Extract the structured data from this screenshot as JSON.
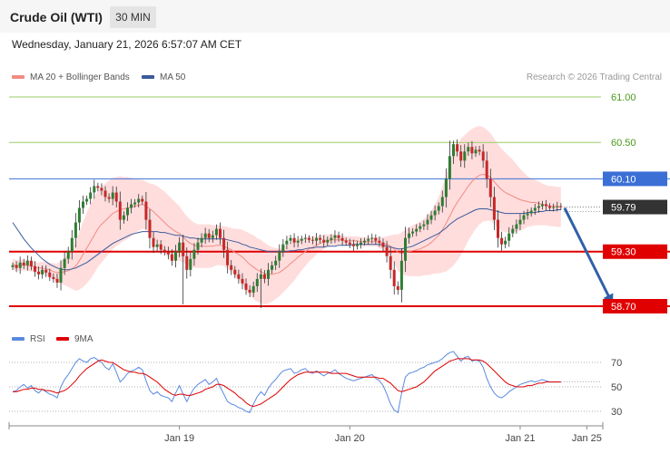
{
  "header": {
    "title": "Crude Oil (WTI)",
    "timeframe": "30 MIN"
  },
  "datetime": "Wednesday, January 21, 2026 6:57:07 AM CET",
  "legend": {
    "bb_label": "MA 20 + Bollinger Bands",
    "ma50_label": "MA 50",
    "copyright": "Research © 2026 Trading Central"
  },
  "rsi_legend": {
    "rsi_label": "RSI",
    "ma_label": "9MA"
  },
  "colors": {
    "up": "#2e7d32",
    "down": "#c62828",
    "bb": "#ffb3b3",
    "ma50": "#3a5a9c",
    "support": "#e00000",
    "pivot": "#3b6fd6",
    "target_lines": "#9acd66",
    "rsi": "#5a8ae0",
    "rsi_ma": "#e00000",
    "arrow": "#3060a8"
  },
  "chart_data": [
    {
      "type": "candlestick",
      "price_range": [
        58.62,
        61.1
      ],
      "x_axis_labels": [
        {
          "label": "Jan 19",
          "bar": 45
        },
        {
          "label": "Jan 20",
          "bar": 91
        },
        {
          "label": "Jan 21",
          "bar": 137
        },
        {
          "label": "Jan 25",
          "bar": 155
        }
      ],
      "levels": [
        {
          "value": 61.0,
          "label": "61.00",
          "kind": "target"
        },
        {
          "value": 60.5,
          "label": "60.50",
          "kind": "target"
        },
        {
          "value": 60.1,
          "label": "60.10",
          "kind": "pivot"
        },
        {
          "value": 59.79,
          "label": "59.79",
          "kind": "last"
        },
        {
          "value": 59.3,
          "label": "59.30",
          "kind": "support"
        },
        {
          "value": 58.7,
          "label": "58.70",
          "kind": "support"
        }
      ],
      "projection": {
        "from_bar": 149,
        "from_price": 59.78,
        "to_bar": 162,
        "to_price": 58.72
      },
      "closes": [
        59.15,
        59.12,
        59.18,
        59.15,
        59.2,
        59.14,
        59.08,
        59.05,
        59.1,
        59.07,
        59.02,
        59.0,
        58.96,
        59.12,
        59.22,
        59.3,
        59.45,
        59.62,
        59.78,
        59.85,
        59.88,
        59.95,
        60.02,
        60.0,
        59.97,
        59.9,
        59.88,
        59.95,
        59.85,
        59.65,
        59.7,
        59.78,
        59.82,
        59.84,
        59.88,
        59.85,
        59.65,
        59.45,
        59.35,
        59.38,
        59.32,
        59.3,
        59.27,
        59.2,
        59.3,
        59.4,
        59.25,
        59.1,
        59.22,
        59.32,
        59.4,
        59.45,
        59.5,
        59.45,
        59.48,
        59.55,
        59.45,
        59.32,
        59.15,
        59.1,
        59.05,
        59.0,
        58.95,
        58.88,
        58.85,
        58.92,
        59.0,
        59.05,
        59.0,
        59.1,
        59.15,
        59.2,
        59.3,
        59.38,
        59.42,
        59.45,
        59.4,
        59.42,
        59.44,
        59.45,
        59.43,
        59.42,
        59.45,
        59.43,
        59.4,
        59.43,
        59.45,
        59.48,
        59.45,
        59.42,
        59.4,
        59.38,
        59.36,
        59.38,
        59.4,
        59.42,
        59.44,
        59.45,
        59.42,
        59.4,
        59.35,
        59.25,
        59.1,
        58.92,
        58.88,
        59.2,
        59.45,
        59.5,
        59.52,
        59.55,
        59.58,
        59.6,
        59.65,
        59.7,
        59.75,
        59.8,
        59.9,
        60.1,
        60.35,
        60.48,
        60.4,
        60.3,
        60.4,
        60.45,
        60.38,
        60.42,
        60.4,
        60.3,
        60.1,
        59.9,
        59.65,
        59.45,
        59.38,
        59.42,
        59.5,
        59.55,
        59.6,
        59.65,
        59.7,
        59.72,
        59.75,
        59.78,
        59.8,
        59.82,
        59.8,
        59.78,
        59.79,
        59.8,
        59.79
      ],
      "ma20": [
        59.16,
        59.15,
        59.15,
        59.15,
        59.15,
        59.14,
        59.13,
        59.12,
        59.12,
        59.11,
        59.1,
        59.08,
        59.07,
        59.07,
        59.08,
        59.09,
        59.11,
        59.14,
        59.2,
        59.27,
        59.34,
        59.41,
        59.48,
        59.55,
        59.6,
        59.64,
        59.68,
        59.72,
        59.74,
        59.76,
        59.77,
        59.78,
        59.79,
        59.8,
        59.81,
        59.82,
        59.8,
        59.77,
        59.74,
        59.7,
        59.66,
        59.62,
        59.58,
        59.55,
        59.52,
        59.5,
        59.46,
        59.42,
        59.39,
        59.37,
        59.36,
        59.36,
        59.36,
        59.36,
        59.36,
        59.37,
        59.37,
        59.36,
        59.34,
        59.32,
        59.29,
        59.27,
        59.24,
        59.2,
        59.16,
        59.13,
        59.1,
        59.08,
        59.06,
        59.05,
        59.05,
        59.06,
        59.07,
        59.1,
        59.13,
        59.17,
        59.2,
        59.24,
        59.27,
        59.3,
        59.33,
        59.35,
        59.37,
        59.39,
        59.41,
        59.42,
        59.43,
        59.43,
        59.43,
        59.43,
        59.42,
        59.42,
        59.42,
        59.42,
        59.41,
        59.41,
        59.41,
        59.41,
        59.41,
        59.4,
        59.39,
        59.38,
        59.36,
        59.33,
        59.29,
        59.28,
        59.29,
        59.3,
        59.31,
        59.32,
        59.33,
        59.35,
        59.37,
        59.4,
        59.44,
        59.48,
        59.54,
        59.61,
        59.69,
        59.77,
        59.84,
        59.9,
        59.96,
        60.02,
        60.07,
        60.11,
        60.14,
        60.15,
        60.14,
        60.12,
        60.07,
        60.02,
        59.98,
        59.95,
        59.93,
        59.91,
        59.89,
        59.87,
        59.86,
        59.85,
        59.84,
        59.84,
        59.83,
        59.82,
        59.81,
        59.8,
        59.8,
        59.79,
        59.79
      ],
      "ma50": [
        59.62,
        59.56,
        59.5,
        59.44,
        59.39,
        59.34,
        59.3,
        59.26,
        59.22,
        59.19,
        59.16,
        59.14,
        59.12,
        59.11,
        59.1,
        59.1,
        59.11,
        59.12,
        59.14,
        59.16,
        59.18,
        59.21,
        59.24,
        59.27,
        59.3,
        59.33,
        59.36,
        59.39,
        59.41,
        59.43,
        59.45,
        59.47,
        59.49,
        59.5,
        59.51,
        59.52,
        59.52,
        59.52,
        59.52,
        59.52,
        59.51,
        59.51,
        59.5,
        59.49,
        59.48,
        59.48,
        59.47,
        59.46,
        59.45,
        59.45,
        59.44,
        59.44,
        59.44,
        59.44,
        59.44,
        59.44,
        59.44,
        59.44,
        59.43,
        59.42,
        59.41,
        59.4,
        59.38,
        59.37,
        59.35,
        59.34,
        59.33,
        59.32,
        59.31,
        59.3,
        59.3,
        59.3,
        59.3,
        59.3,
        59.3,
        59.31,
        59.31,
        59.32,
        59.32,
        59.33,
        59.34,
        59.34,
        59.35,
        59.35,
        59.35,
        59.36,
        59.36,
        59.36,
        59.37,
        59.37,
        59.37,
        59.37,
        59.38,
        59.38,
        59.38,
        59.38,
        59.38,
        59.38,
        59.38,
        59.38,
        59.37,
        59.36,
        59.35,
        59.34,
        59.33,
        59.33,
        59.34,
        59.35,
        59.36,
        59.38,
        59.4,
        59.42,
        59.44,
        59.46,
        59.48,
        59.5,
        59.53,
        59.56,
        59.6,
        59.63,
        59.66,
        59.68,
        59.7,
        59.72,
        59.74,
        59.76,
        59.77,
        59.77,
        59.77,
        59.76,
        59.75,
        59.74,
        59.73,
        59.72,
        59.72,
        59.72,
        59.72,
        59.72,
        59.72,
        59.73,
        59.73,
        59.73,
        59.74,
        59.74,
        59.75,
        59.75,
        59.75,
        59.76,
        59.76
      ],
      "bb_width": [
        0.06,
        0.06,
        0.06,
        0.06,
        0.06,
        0.06,
        0.06,
        0.06,
        0.07,
        0.07,
        0.08,
        0.09,
        0.1,
        0.12,
        0.15,
        0.18,
        0.22,
        0.27,
        0.32,
        0.36,
        0.39,
        0.41,
        0.42,
        0.42,
        0.42,
        0.41,
        0.4,
        0.39,
        0.38,
        0.37,
        0.35,
        0.34,
        0.32,
        0.3,
        0.28,
        0.27,
        0.27,
        0.28,
        0.3,
        0.32,
        0.33,
        0.34,
        0.34,
        0.33,
        0.32,
        0.3,
        0.28,
        0.27,
        0.26,
        0.25,
        0.24,
        0.24,
        0.24,
        0.24,
        0.23,
        0.22,
        0.22,
        0.22,
        0.23,
        0.24,
        0.26,
        0.28,
        0.3,
        0.32,
        0.34,
        0.35,
        0.35,
        0.35,
        0.34,
        0.32,
        0.3,
        0.28,
        0.26,
        0.25,
        0.24,
        0.23,
        0.22,
        0.2,
        0.18,
        0.16,
        0.14,
        0.12,
        0.1,
        0.09,
        0.08,
        0.07,
        0.06,
        0.06,
        0.05,
        0.05,
        0.05,
        0.05,
        0.05,
        0.05,
        0.05,
        0.05,
        0.05,
        0.05,
        0.05,
        0.06,
        0.07,
        0.09,
        0.12,
        0.16,
        0.2,
        0.23,
        0.25,
        0.27,
        0.28,
        0.29,
        0.3,
        0.31,
        0.33,
        0.35,
        0.38,
        0.42,
        0.47,
        0.53,
        0.58,
        0.62,
        0.64,
        0.64,
        0.62,
        0.6,
        0.58,
        0.56,
        0.54,
        0.52,
        0.5,
        0.48,
        0.47,
        0.46,
        0.45,
        0.44,
        0.42,
        0.4,
        0.37,
        0.34,
        0.31,
        0.28,
        0.26,
        0.25,
        0.24,
        0.23,
        0.22,
        0.22,
        0.22,
        0.22,
        0.22
      ]
    },
    {
      "type": "line",
      "name": "RSI",
      "y_range": [
        20,
        80
      ],
      "ticks": [
        70,
        50,
        30
      ],
      "rsi": [
        46,
        47,
        50,
        52,
        49,
        51,
        47,
        45,
        48,
        46,
        44,
        43,
        41,
        50,
        56,
        60,
        65,
        70,
        73,
        71,
        70,
        73,
        74,
        72,
        70,
        66,
        64,
        69,
        62,
        54,
        57,
        61,
        63,
        64,
        66,
        64,
        55,
        47,
        44,
        46,
        43,
        42,
        41,
        38,
        45,
        51,
        44,
        38,
        44,
        49,
        52,
        54,
        56,
        52,
        54,
        57,
        50,
        44,
        38,
        36,
        35,
        33,
        32,
        30,
        29,
        36,
        42,
        46,
        43,
        49,
        53,
        56,
        60,
        63,
        64,
        65,
        61,
        62,
        64,
        65,
        62,
        61,
        63,
        61,
        59,
        61,
        62,
        64,
        61,
        59,
        57,
        56,
        55,
        56,
        57,
        58,
        59,
        60,
        57,
        55,
        51,
        44,
        36,
        31,
        29,
        45,
        58,
        61,
        62,
        63,
        65,
        66,
        68,
        69,
        70,
        71,
        73,
        76,
        78,
        79,
        75,
        71,
        74,
        75,
        71,
        72,
        71,
        66,
        57,
        50,
        45,
        42,
        41,
        43,
        46,
        48,
        50,
        52,
        53,
        54,
        55,
        54,
        55,
        56,
        55,
        54,
        54,
        54,
        54
      ],
      "rsi_ma": [
        46,
        46,
        47,
        48,
        48,
        49,
        49,
        48,
        48,
        47,
        47,
        46,
        45,
        46,
        47,
        49,
        52,
        55,
        59,
        62,
        65,
        67,
        69,
        71,
        72,
        71,
        70,
        70,
        68,
        66,
        64,
        63,
        62,
        62,
        61,
        61,
        60,
        58,
        56,
        54,
        51,
        48,
        46,
        44,
        43,
        44,
        44,
        43,
        43,
        44,
        45,
        46,
        48,
        49,
        50,
        52,
        52,
        51,
        49,
        47,
        45,
        42,
        40,
        37,
        35,
        34,
        35,
        36,
        38,
        40,
        42,
        44,
        47,
        50,
        53,
        56,
        58,
        60,
        61,
        62,
        62,
        62,
        62,
        62,
        62,
        62,
        61,
        61,
        61,
        61,
        61,
        60,
        59,
        58,
        58,
        58,
        58,
        58,
        58,
        57,
        57,
        55,
        53,
        50,
        47,
        46,
        47,
        48,
        49,
        50,
        52,
        54,
        57,
        60,
        63,
        65,
        67,
        69,
        71,
        72,
        73,
        73,
        73,
        73,
        72,
        72,
        72,
        71,
        69,
        66,
        63,
        60,
        57,
        54,
        52,
        51,
        50,
        50,
        50,
        51,
        51,
        52,
        53,
        53,
        54,
        54,
        54,
        54,
        54
      ]
    }
  ]
}
